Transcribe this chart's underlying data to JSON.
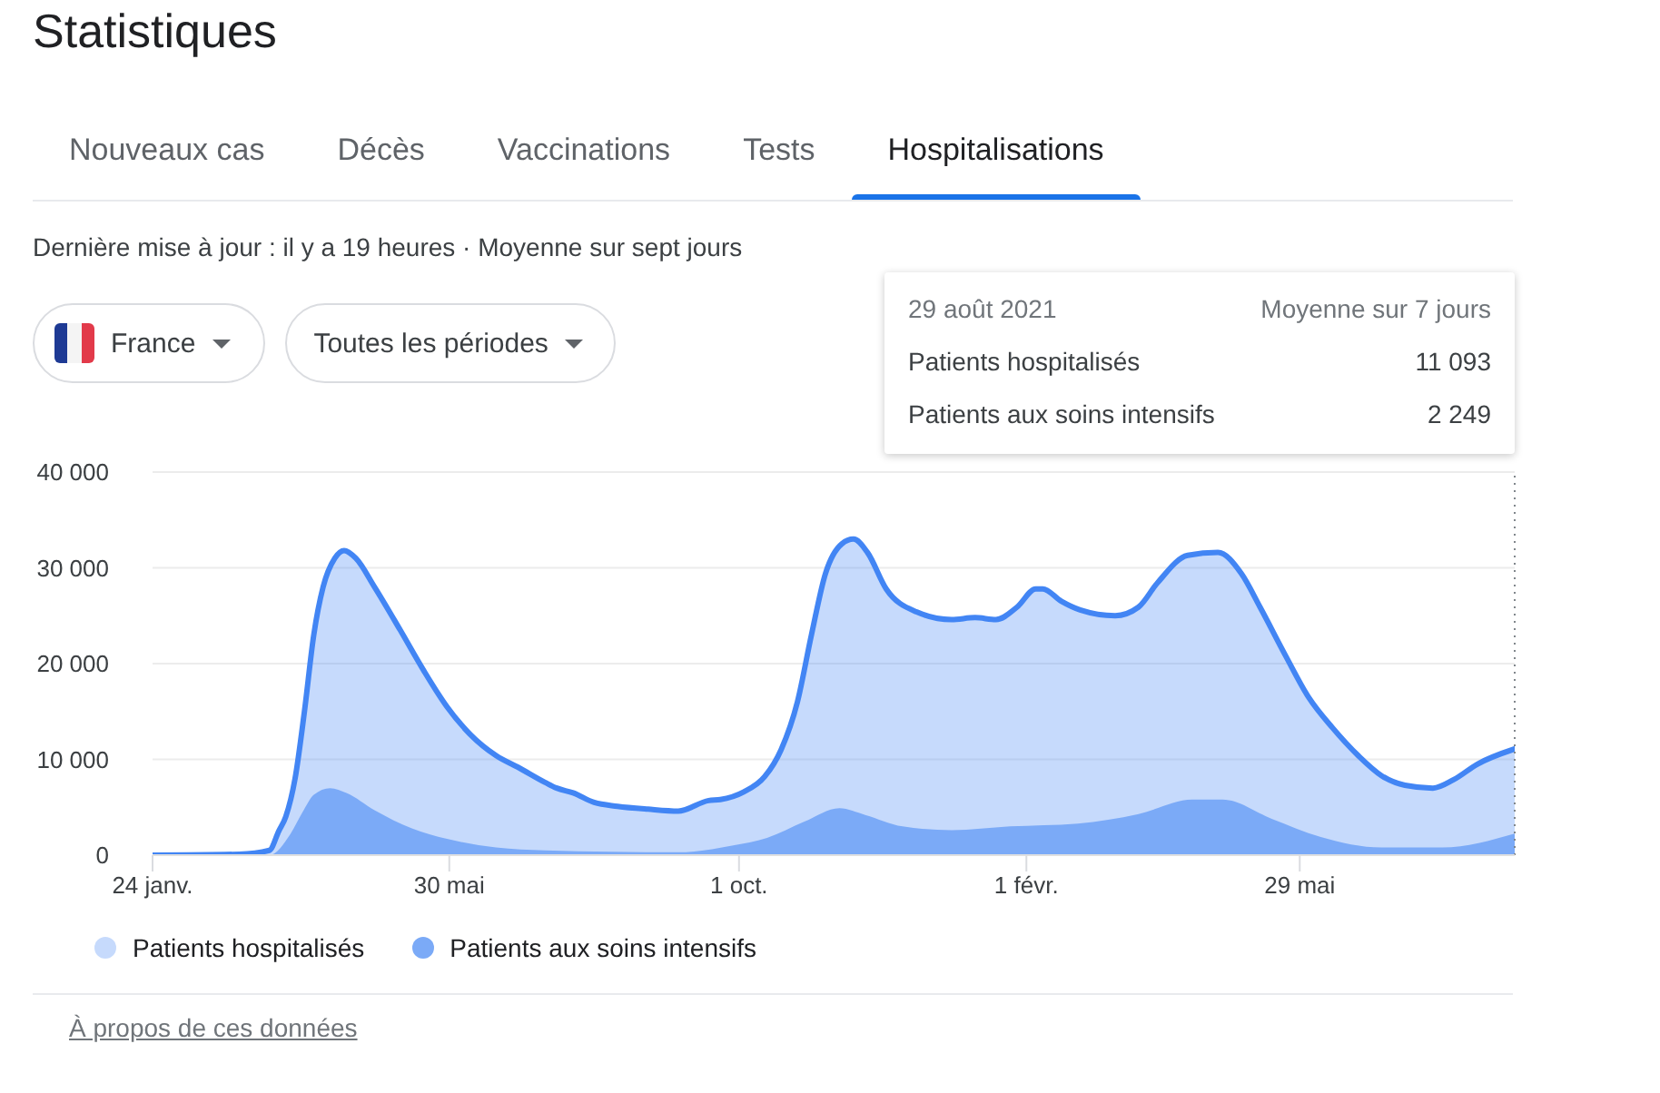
{
  "chart_data": {
    "type": "area",
    "title": "Statistiques",
    "subtitle": "Dernière mise à jour : il y a 19 heures · Moyenne sur sept jours",
    "annotations": [
      "Nouveaux cas",
      "Décès",
      "Vaccinations",
      "Tests",
      "Hospitalisations",
      "France",
      "Toutes les périodes",
      "29 août 2021",
      "Moyenne sur 7 jours",
      "Patients hospitalisés",
      "11 093",
      "Patients aux soins intensifs",
      "2 249",
      "À propos de ces données"
    ],
    "xlim": [
      "2020-01-24",
      "2021-08-29"
    ],
    "xticks": [
      {
        "value": "2020-01-24",
        "label": "24 janv."
      },
      {
        "value": "2020-05-30",
        "label": "30 mai"
      },
      {
        "value": "2020-10-01",
        "label": "1 oct."
      },
      {
        "value": "2021-02-01",
        "label": "1 févr."
      },
      {
        "value": "2021-05-29",
        "label": "29 mai"
      }
    ],
    "ylim": [
      0,
      40000
    ],
    "yticks": [
      {
        "value": 0,
        "label": "0"
      },
      {
        "value": 10000,
        "label": "10 000"
      },
      {
        "value": 20000,
        "label": "20 000"
      },
      {
        "value": 30000,
        "label": "30 000"
      },
      {
        "value": 40000,
        "label": "40 000"
      }
    ],
    "grid": "y",
    "legend": "bottom",
    "ref_lines": [
      {
        "axis": "x",
        "value": "2021-08-29",
        "color": "#80868b",
        "line_style": "dotted"
      }
    ],
    "series": [
      {
        "name": "Patients hospitalisés",
        "color": "#4285f4",
        "line_style": "solid",
        "x": [
          "2020-01-24",
          "2020-03-01",
          "2020-03-14",
          "2020-03-18",
          "2020-03-21",
          "2020-03-25",
          "2020-03-29",
          "2020-04-02",
          "2020-04-06",
          "2020-04-11",
          "2020-04-15",
          "2020-04-20",
          "2020-04-28",
          "2020-05-09",
          "2020-05-19",
          "2020-05-29",
          "2020-06-08",
          "2020-06-19",
          "2020-06-29",
          "2020-07-10",
          "2020-07-15",
          "2020-07-22",
          "2020-07-31",
          "2020-08-10",
          "2020-08-23",
          "2020-09-05",
          "2020-09-18",
          "2020-09-23",
          "2020-10-03",
          "2020-10-12",
          "2020-10-19",
          "2020-10-26",
          "2020-11-01",
          "2020-11-07",
          "2020-11-14",
          "2020-11-19",
          "2020-11-25",
          "2020-12-03",
          "2020-12-16",
          "2020-12-31",
          "2021-01-10",
          "2021-01-19",
          "2021-01-28",
          "2021-02-05",
          "2021-02-08",
          "2021-02-16",
          "2021-02-24",
          "2021-03-11",
          "2021-03-21",
          "2021-03-29",
          "2021-04-11",
          "2021-04-24",
          "2021-05-04",
          "2021-05-12",
          "2021-05-23",
          "2021-06-02",
          "2021-06-12",
          "2021-06-23",
          "2021-07-03",
          "2021-07-13",
          "2021-07-25",
          "2021-08-03",
          "2021-08-13",
          "2021-08-29"
        ],
        "values": [
          0,
          100,
          500,
          2500,
          4000,
          8000,
          15000,
          23000,
          28000,
          31000,
          31800,
          31000,
          28000,
          23500,
          19300,
          15500,
          12600,
          10400,
          9100,
          7600,
          7000,
          6500,
          5500,
          5100,
          4800,
          4600,
          5700,
          5800,
          6600,
          8200,
          11000,
          16000,
          23000,
          29400,
          32500,
          33000,
          31600,
          27800,
          25400,
          24600,
          24800,
          24600,
          25900,
          27800,
          27800,
          26500,
          25600,
          25000,
          25900,
          28400,
          31300,
          31600,
          29400,
          25900,
          20800,
          16400,
          13300,
          10400,
          8300,
          7300,
          7000,
          7900,
          9500,
          11093
        ]
      },
      {
        "name": "Patients aux soins intensifs",
        "color": "#7baaf7",
        "x": [
          "2020-01-24",
          "2020-03-14",
          "2020-03-23",
          "2020-03-28",
          "2020-04-02",
          "2020-04-09",
          "2020-04-16",
          "2020-04-28",
          "2020-05-14",
          "2020-05-29",
          "2020-06-19",
          "2020-07-10",
          "2020-09-05",
          "2020-09-28",
          "2020-10-13",
          "2020-10-29",
          "2020-11-13",
          "2020-11-24",
          "2020-12-10",
          "2020-12-31",
          "2021-01-25",
          "2021-02-23",
          "2021-03-21",
          "2021-04-13",
          "2021-04-26",
          "2021-05-17",
          "2021-06-07",
          "2021-07-03",
          "2021-07-29",
          "2021-08-29"
        ],
        "values": [
          0,
          0,
          2200,
          4400,
          6300,
          7000,
          6500,
          4700,
          2800,
          1700,
          800,
          500,
          300,
          1000,
          1800,
          3500,
          4900,
          4200,
          3000,
          2600,
          3000,
          3300,
          4300,
          5800,
          5800,
          3800,
          1900,
          800,
          800,
          2249
        ]
      }
    ]
  }
}
